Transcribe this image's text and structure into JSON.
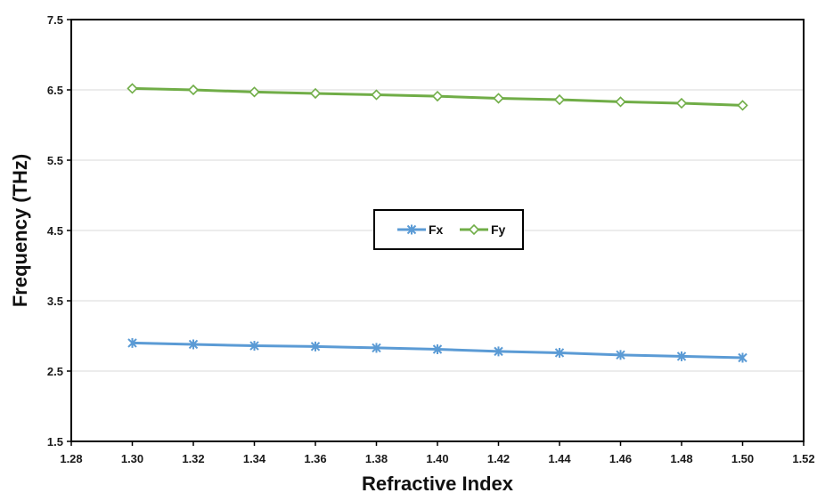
{
  "chart_data": {
    "type": "line",
    "title": "",
    "xlabel": "Refractive Index",
    "ylabel": "Frequency (THz)",
    "xlim": [
      1.28,
      1.52
    ],
    "ylim": [
      1.5,
      7.5
    ],
    "x_ticks": [
      "1.28",
      "1.30",
      "1.32",
      "1.34",
      "1.36",
      "1.38",
      "1.40",
      "1.42",
      "1.44",
      "1.46",
      "1.48",
      "1.50",
      "1.52"
    ],
    "y_ticks": [
      "1.5",
      "2.5",
      "3.5",
      "4.5",
      "5.5",
      "6.5",
      "7.5"
    ],
    "grid": "horizontal",
    "legend": "center",
    "x": [
      1.3,
      1.32,
      1.34,
      1.36,
      1.38,
      1.4,
      1.42,
      1.44,
      1.46,
      1.48,
      1.5
    ],
    "series": [
      {
        "name": "Fx",
        "color": "#5b9bd5",
        "marker": "asterisk",
        "values": [
          2.9,
          2.88,
          2.86,
          2.85,
          2.83,
          2.81,
          2.78,
          2.76,
          2.73,
          2.71,
          2.69
        ]
      },
      {
        "name": "Fy",
        "color": "#70ad47",
        "marker": "diamond",
        "values": [
          6.52,
          6.5,
          6.47,
          6.45,
          6.43,
          6.41,
          6.38,
          6.36,
          6.33,
          6.31,
          6.28
        ]
      }
    ]
  }
}
